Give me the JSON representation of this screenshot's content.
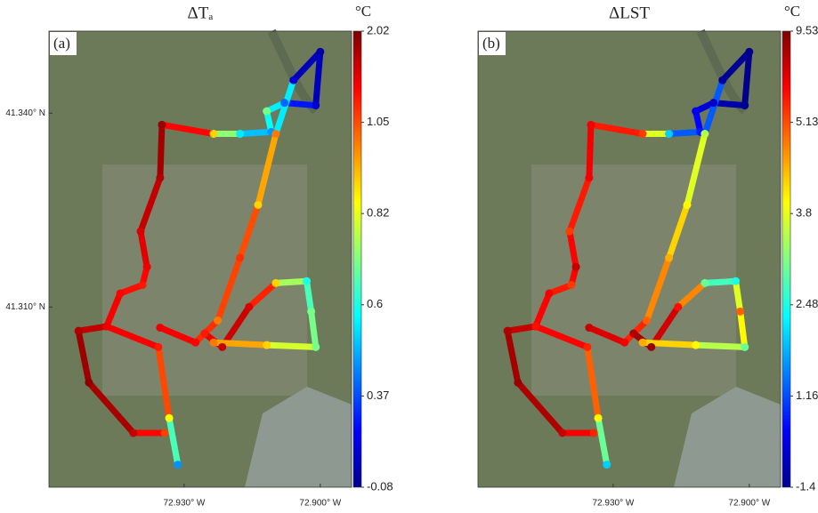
{
  "chart_data": [
    {
      "type": "scatter",
      "panel_label": "(a)",
      "title": "ΔTₐ",
      "colorbar_unit": "°C",
      "colorbar_ticks": [
        -0.08,
        0.37,
        0.6,
        0.82,
        1.05,
        2.02
      ],
      "xlim": [
        -72.9598,
        -72.8931
      ],
      "ylim": [
        41.2821,
        41.3527
      ],
      "xticks": [
        {
          "value": -72.93,
          "label": "72.930° W"
        },
        {
          "value": -72.9,
          "label": "72.900° W"
        }
      ],
      "yticks": [
        {
          "value": 41.34,
          "label": "41.340° N"
        },
        {
          "value": 41.31,
          "label": "41.310° N"
        }
      ],
      "x": [
        -72.9314,
        -72.9333,
        -72.9357,
        -72.9471,
        -72.9533,
        -72.951,
        -72.9412,
        -72.9343,
        null,
        -72.9471,
        -72.9441,
        -72.9392,
        -72.9382,
        -72.9396,
        -72.9353,
        -72.9349,
        -72.9235,
        -72.9177,
        -72.9108,
        -72.9118,
        -72.9079,
        -72.901,
        -72.9,
        -72.9059,
        -72.9098,
        -72.9137,
        -72.9177,
        -72.9226,
        -72.9275,
        -72.9353,
        null,
        -72.9255,
        -72.9216,
        -72.9157,
        -72.9098,
        -72.903,
        -72.902,
        -72.901,
        -72.9118,
        -72.9235
      ],
      "y": [
        41.2856,
        41.2928,
        41.3038,
        41.307,
        41.3063,
        41.2983,
        41.2905,
        41.2905,
        null,
        41.307,
        41.3121,
        41.3134,
        41.3162,
        41.3217,
        41.33,
        41.3382,
        41.3368,
        41.3368,
        41.3371,
        41.3403,
        41.3416,
        41.3412,
        41.3495,
        41.3451,
        41.3368,
        41.3258,
        41.3176,
        41.3079,
        41.3045,
        41.3068,
        null,
        41.3059,
        41.3038,
        41.31,
        41.3137,
        41.314,
        41.3093,
        41.3038,
        41.3041,
        41.3045
      ],
      "values": [
        0.45,
        0.85,
        1.3,
        1.6,
        1.8,
        1.95,
        1.7,
        1.1,
        null,
        1.5,
        1.4,
        1.3,
        1.5,
        1.6,
        1.8,
        1.9,
        0.9,
        0.55,
        0.45,
        0.7,
        0.4,
        0.1,
        0.0,
        0.1,
        1.0,
        0.9,
        1.2,
        1.0,
        1.4,
        1.5,
        null,
        1.3,
        1.7,
        1.6,
        0.9,
        0.6,
        0.7,
        0.7,
        0.9,
        1.0
      ]
    },
    {
      "type": "scatter",
      "panel_label": "(b)",
      "title": "ΔLST",
      "colorbar_unit": "°C",
      "colorbar_ticks": [
        -1.4,
        1.16,
        2.48,
        3.8,
        5.13,
        9.53
      ],
      "xlim": [
        -72.9598,
        -72.8931
      ],
      "ylim": [
        41.2821,
        41.3527
      ],
      "xticks": [
        {
          "value": -72.93,
          "label": "72.930° W"
        },
        {
          "value": -72.9,
          "label": "72.900° W"
        }
      ],
      "x": [
        -72.9314,
        -72.9333,
        -72.9357,
        -72.9471,
        -72.9533,
        -72.951,
        -72.9412,
        -72.9343,
        null,
        -72.9471,
        -72.9441,
        -72.9392,
        -72.9382,
        -72.9396,
        -72.9353,
        -72.9349,
        -72.9235,
        -72.9177,
        -72.9108,
        -72.9118,
        -72.9079,
        -72.901,
        -72.9,
        -72.9059,
        -72.9098,
        -72.9137,
        -72.9177,
        -72.9226,
        -72.9275,
        -72.9353,
        null,
        -72.9255,
        -72.9216,
        -72.9157,
        -72.9098,
        -72.903,
        -72.902,
        -72.901,
        -72.9118,
        -72.9235
      ],
      "y": [
        41.2856,
        41.2928,
        41.3038,
        41.307,
        41.3063,
        41.2983,
        41.2905,
        41.2905,
        null,
        41.307,
        41.3121,
        41.3134,
        41.3162,
        41.3217,
        41.33,
        41.3382,
        41.3368,
        41.3368,
        41.3371,
        41.3403,
        41.3416,
        41.3412,
        41.3495,
        41.3451,
        41.3368,
        41.3258,
        41.3176,
        41.3079,
        41.3045,
        41.3068,
        null,
        41.3059,
        41.3038,
        41.31,
        41.3137,
        41.314,
        41.3093,
        41.3038,
        41.3041,
        41.3045
      ],
      "values": [
        2.0,
        4.0,
        6.0,
        7.5,
        8.5,
        9.0,
        8.0,
        6.0,
        null,
        6.5,
        7.0,
        5.5,
        8.0,
        5.5,
        7.0,
        7.0,
        5.5,
        2.0,
        0.5,
        0.0,
        -0.5,
        -1.2,
        -1.3,
        -1.0,
        3.5,
        4.0,
        4.5,
        5.0,
        7.0,
        8.0,
        null,
        8.5,
        9.0,
        6.5,
        3.0,
        2.5,
        5.0,
        3.0,
        4.0,
        4.5
      ]
    }
  ]
}
